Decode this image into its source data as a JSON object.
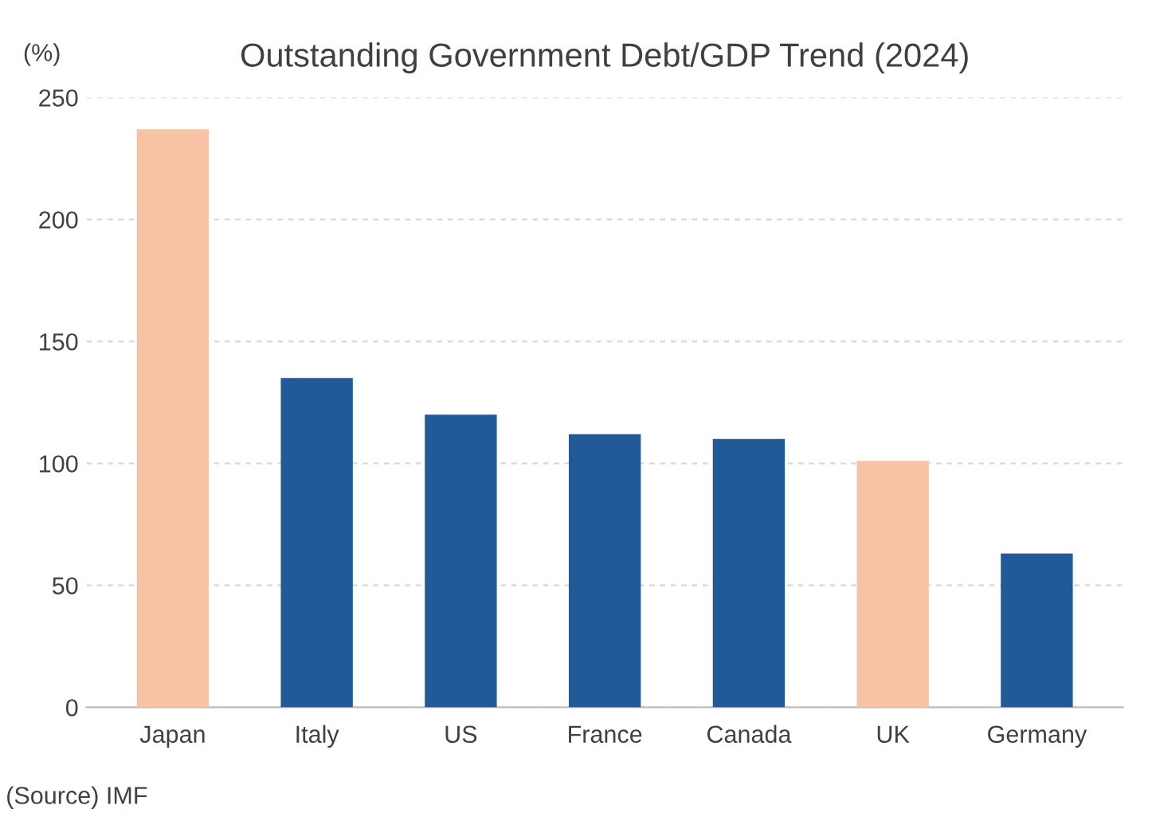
{
  "chart_data": {
    "type": "bar",
    "title": "Outstanding Government Debt/GDP Trend (2024)",
    "ylabel": "(%)",
    "categories": [
      "Japan",
      "Italy",
      "US",
      "France",
      "Canada",
      "UK",
      "Germany"
    ],
    "values": [
      237,
      135,
      120,
      112,
      110,
      101,
      63
    ],
    "colors": [
      "#f8c3a5",
      "#215a96",
      "#215a96",
      "#215a96",
      "#215a96",
      "#f8c3a5",
      "#215a96"
    ],
    "ylim": [
      0,
      250
    ],
    "yticks": [
      0,
      50,
      100,
      150,
      200,
      250
    ],
    "grid": "y",
    "annotations": [
      "(Source) IMF"
    ]
  }
}
